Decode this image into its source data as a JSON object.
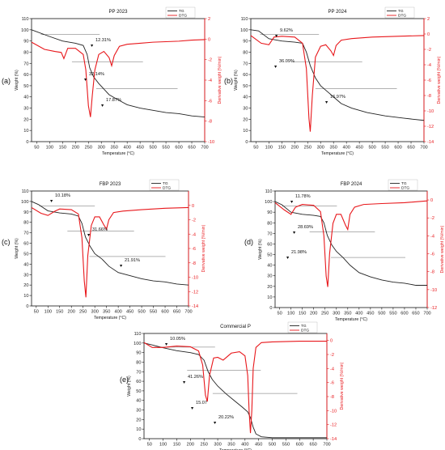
{
  "figure": {
    "panels": [
      {
        "label": "(a)",
        "title": "PP 2023"
      },
      {
        "label": "(b)",
        "title": "PP 2024"
      },
      {
        "label": "(c)",
        "title": "FBP 2023"
      },
      {
        "label": "(d)",
        "title": "FBP 2024"
      },
      {
        "label": "(e)",
        "title": "Commercial P"
      }
    ]
  },
  "colors": {
    "tg": "#222222",
    "dtg": "#e8171b",
    "axis": "#111111"
  },
  "chart_data": [
    {
      "type": "line",
      "title": "PP 2023",
      "panel_label": "(a)",
      "xlabel": "Temperature (°C)",
      "ylabel": "Weight (%)",
      "y2label": "Derivative weight (%/min)",
      "xlim": [
        30,
        700
      ],
      "ylim": [
        0,
        110
      ],
      "y2lim": [
        -10,
        2
      ],
      "xticks": [
        50,
        100,
        150,
        200,
        250,
        300,
        350,
        400,
        450,
        500,
        550,
        600,
        650,
        700
      ],
      "yticks": [
        0,
        10,
        20,
        30,
        40,
        50,
        60,
        70,
        80,
        90,
        100,
        110
      ],
      "y2ticks": [
        2,
        0,
        -2,
        -4,
        -6,
        -8,
        -10
      ],
      "legend": [
        "TG",
        "DTG"
      ],
      "annotations": [
        "12.31%",
        "32.14%",
        "17.87%"
      ],
      "series": [
        {
          "name": "TG",
          "x": [
            30,
            100,
            150,
            200,
            230,
            245,
            255,
            270,
            290,
            310,
            330,
            360,
            400,
            450,
            500,
            550,
            600,
            650,
            700
          ],
          "y": [
            100,
            94,
            90,
            88,
            86,
            78,
            66,
            58,
            52,
            47,
            42,
            38,
            33,
            30,
            28,
            26,
            25,
            23,
            22
          ]
        },
        {
          "name": "DTG",
          "x": [
            30,
            80,
            120,
            145,
            155,
            170,
            200,
            230,
            240,
            250,
            258,
            265,
            275,
            290,
            310,
            330,
            340,
            350,
            370,
            400,
            450,
            500,
            550,
            600,
            650,
            700
          ],
          "y": [
            -0.3,
            -1.0,
            -1.2,
            -1.3,
            -1.9,
            -0.9,
            -0.9,
            -1.5,
            -3.0,
            -6.5,
            -7.6,
            -5.5,
            -3.0,
            -1.5,
            -1.2,
            -1.8,
            -2.6,
            -1.6,
            -0.7,
            -0.5,
            -0.4,
            -0.3,
            -0.25,
            -0.2,
            -0.1,
            -0.05
          ]
        }
      ]
    },
    {
      "type": "line",
      "title": "PP 2024",
      "panel_label": "(b)",
      "xlabel": "Temperature (°C)",
      "ylabel": "Weight (%)",
      "y2label": "Derivative weight (%/min)",
      "xlim": [
        30,
        700
      ],
      "ylim": [
        0,
        110
      ],
      "y2lim": [
        -14,
        2
      ],
      "xticks": [
        50,
        100,
        150,
        200,
        250,
        300,
        350,
        400,
        450,
        500,
        550,
        600,
        650,
        700
      ],
      "yticks": [
        0,
        10,
        20,
        30,
        40,
        50,
        60,
        70,
        80,
        90,
        100,
        110
      ],
      "y2ticks": [
        2,
        0,
        -2,
        -4,
        -6,
        -8,
        -10,
        -12,
        -14
      ],
      "legend": [
        "TG",
        "DTG"
      ],
      "annotations": [
        "9.62%",
        "36.09%",
        "16.97%"
      ],
      "series": [
        {
          "name": "TG",
          "x": [
            30,
            60,
            100,
            150,
            200,
            230,
            245,
            260,
            280,
            300,
            330,
            350,
            380,
            420,
            480,
            550,
            620,
            700
          ],
          "y": [
            100,
            99,
            92,
            90,
            89,
            88,
            80,
            68,
            57,
            50,
            44,
            40,
            34,
            30,
            26,
            23,
            21,
            19
          ]
        },
        {
          "name": "DTG",
          "x": [
            30,
            70,
            100,
            120,
            150,
            200,
            230,
            245,
            255,
            260,
            268,
            280,
            300,
            320,
            340,
            350,
            360,
            380,
            420,
            500,
            600,
            700
          ],
          "y": [
            -0.2,
            -1.2,
            -1.4,
            -0.4,
            -0.3,
            -0.4,
            -1.2,
            -4.5,
            -11,
            -12.7,
            -8.0,
            -3.0,
            -1.6,
            -1.4,
            -2.2,
            -2.8,
            -1.5,
            -0.8,
            -0.6,
            -0.4,
            -0.3,
            -0.2
          ]
        }
      ]
    },
    {
      "type": "line",
      "title": "FBP 2023",
      "panel_label": "(c)",
      "xlabel": "Temperature (°C)",
      "ylabel": "Weight (%)",
      "y2label": "Derivative weight (%/min)",
      "xlim": [
        30,
        700
      ],
      "ylim": [
        0,
        110
      ],
      "y2lim": [
        -14,
        2
      ],
      "xticks": [
        50,
        100,
        150,
        200,
        250,
        300,
        350,
        400,
        450,
        500,
        550,
        600,
        650,
        700
      ],
      "yticks": [
        0,
        10,
        20,
        30,
        40,
        50,
        60,
        70,
        80,
        90,
        100,
        110
      ],
      "y2ticks": [
        0,
        -2,
        -4,
        -6,
        -8,
        -10,
        -12,
        -14
      ],
      "legend": [
        "TG",
        "DTG"
      ],
      "annotations": [
        "10.18%",
        "31.66%",
        "21.91%"
      ],
      "series": [
        {
          "name": "TG",
          "x": [
            30,
            60,
            100,
            150,
            200,
            230,
            245,
            260,
            280,
            300,
            330,
            360,
            400,
            450,
            500,
            550,
            600,
            650,
            700
          ],
          "y": [
            100,
            97,
            91,
            89,
            88,
            86,
            79,
            66,
            57,
            50,
            45,
            38,
            32,
            29,
            26,
            24,
            23,
            21,
            20
          ]
        },
        {
          "name": "DTG",
          "x": [
            30,
            70,
            100,
            130,
            150,
            200,
            230,
            245,
            255,
            262,
            270,
            285,
            300,
            320,
            340,
            350,
            360,
            380,
            420,
            500,
            600,
            700
          ],
          "y": [
            -0.3,
            -1.1,
            -1.4,
            -0.8,
            -0.5,
            -0.6,
            -1.2,
            -4.5,
            -10.5,
            -12.8,
            -7.0,
            -2.8,
            -1.6,
            -1.6,
            -2.8,
            -3.3,
            -2.0,
            -1.0,
            -0.8,
            -0.6,
            -0.4,
            -0.3
          ]
        }
      ]
    },
    {
      "type": "line",
      "title": "FBP 2024",
      "panel_label": "(d)",
      "xlabel": "Temperature (°C)",
      "ylabel": "Weight (%)",
      "y2label": "Derivative weight (%/min)",
      "xlim": [
        30,
        700
      ],
      "ylim": [
        0,
        110
      ],
      "y2lim": [
        -12,
        1
      ],
      "xticks": [
        50,
        100,
        150,
        200,
        250,
        300,
        350,
        400,
        450,
        500,
        550,
        600,
        650,
        700
      ],
      "yticks": [
        0,
        10,
        20,
        30,
        40,
        50,
        60,
        70,
        80,
        90,
        100,
        110
      ],
      "y2ticks": [
        0,
        -2,
        -4,
        -6,
        -8,
        -10,
        -12
      ],
      "legend": [
        "TG",
        "DTG"
      ],
      "annotations": [
        "11.78%",
        "28.69%",
        "21.98%"
      ],
      "series": [
        {
          "name": "TG",
          "x": [
            30,
            60,
            100,
            150,
            200,
            230,
            245,
            260,
            280,
            300,
            330,
            360,
            400,
            450,
            500,
            550,
            600,
            650,
            700
          ],
          "y": [
            100,
            97,
            90,
            88,
            87,
            86,
            80,
            68,
            59,
            53,
            47,
            40,
            33,
            29,
            26,
            24,
            23,
            21,
            21
          ]
        },
        {
          "name": "DTG",
          "x": [
            30,
            70,
            100,
            120,
            150,
            200,
            230,
            245,
            255,
            262,
            270,
            285,
            300,
            320,
            340,
            350,
            360,
            380,
            420,
            500,
            600,
            700
          ],
          "y": [
            -0.3,
            -1.1,
            -1.6,
            -0.8,
            -0.5,
            -0.6,
            -1.3,
            -4.0,
            -8.5,
            -9.7,
            -6.0,
            -2.6,
            -1.6,
            -1.6,
            -2.8,
            -3.3,
            -1.6,
            -0.8,
            -0.5,
            -0.4,
            -0.3,
            -0.1
          ]
        }
      ]
    },
    {
      "type": "line",
      "title": "Commercial P",
      "panel_label": "(e)",
      "xlabel": "Temperature (°C)",
      "ylabel": "Weight (%)",
      "y2label": "Derivative weight (%/min)",
      "xlim": [
        30,
        700
      ],
      "ylim": [
        0,
        110
      ],
      "y2lim": [
        -14,
        1
      ],
      "xticks": [
        50,
        100,
        150,
        200,
        250,
        300,
        350,
        400,
        450,
        500,
        550,
        600,
        650,
        700
      ],
      "yticks": [
        0,
        10,
        20,
        30,
        40,
        50,
        60,
        70,
        80,
        90,
        100,
        110
      ],
      "y2ticks": [
        0,
        -2,
        -4,
        -6,
        -8,
        -10,
        -12,
        -14
      ],
      "legend": [
        "TG",
        "DTG"
      ],
      "annotations": [
        "10.05%",
        "41.26%",
        "15.07",
        "20.22%"
      ],
      "series": [
        {
          "name": "TG",
          "x": [
            30,
            60,
            100,
            150,
            200,
            230,
            250,
            265,
            280,
            300,
            330,
            360,
            390,
            410,
            420,
            430,
            440,
            460,
            500,
            550,
            600,
            650,
            700
          ],
          "y": [
            100,
            98,
            95,
            92,
            90,
            88,
            82,
            70,
            62,
            55,
            47,
            40,
            33,
            28,
            22,
            12,
            5,
            2,
            1,
            1,
            1,
            1,
            1
          ]
        },
        {
          "name": "DTG",
          "x": [
            30,
            60,
            100,
            150,
            200,
            230,
            245,
            255,
            262,
            270,
            285,
            300,
            320,
            350,
            380,
            400,
            410,
            415,
            420,
            425,
            430,
            440,
            460,
            500,
            600,
            700
          ],
          "y": [
            -0.3,
            -1.0,
            -1.0,
            -0.8,
            -0.9,
            -1.5,
            -3.5,
            -7.8,
            -8.7,
            -5.0,
            -2.5,
            -2.4,
            -2.8,
            -1.8,
            -1.6,
            -2.2,
            -5.0,
            -10.0,
            -13.2,
            -10.0,
            -4.0,
            -1.0,
            -0.3,
            -0.2,
            -0.1,
            -0.1
          ]
        }
      ]
    }
  ]
}
